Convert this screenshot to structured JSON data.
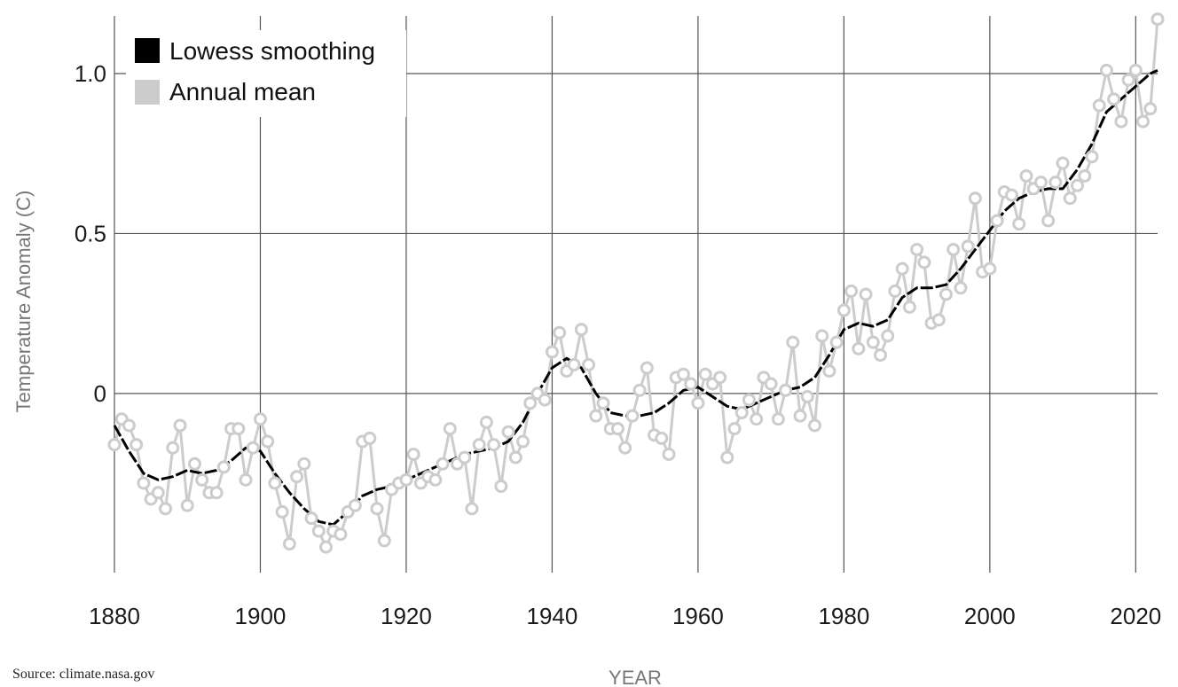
{
  "source": "Source: climate.nasa.gov",
  "chart_data": {
    "type": "line",
    "xlabel": "YEAR",
    "ylabel": "Temperature Anomaly (C)",
    "xlim": [
      1880,
      2023
    ],
    "ylim": [
      -0.56,
      1.18
    ],
    "x_ticks": [
      1880,
      1900,
      1920,
      1940,
      1960,
      1980,
      2000,
      2020
    ],
    "y_ticks": [
      {
        "value": 0,
        "label": "0"
      },
      {
        "value": 0.5,
        "label": "0.5"
      },
      {
        "value": 1.0,
        "label": "1.0"
      }
    ],
    "grid": true,
    "legend_position": "top-left",
    "series_colors": {
      "smooth": "#000000",
      "annual": "#cccccc"
    },
    "series": [
      {
        "name": "Lowess smoothing",
        "x": [
          1880,
          1882,
          1884,
          1886,
          1888,
          1890,
          1892,
          1894,
          1896,
          1898,
          1900,
          1902,
          1904,
          1906,
          1908,
          1910,
          1912,
          1914,
          1916,
          1918,
          1920,
          1922,
          1924,
          1926,
          1928,
          1930,
          1932,
          1934,
          1936,
          1938,
          1940,
          1942,
          1944,
          1946,
          1948,
          1950,
          1952,
          1954,
          1956,
          1958,
          1960,
          1962,
          1964,
          1966,
          1968,
          1970,
          1972,
          1974,
          1976,
          1978,
          1980,
          1982,
          1984,
          1986,
          1988,
          1990,
          1992,
          1994,
          1996,
          1998,
          2000,
          2002,
          2004,
          2006,
          2008,
          2010,
          2012,
          2014,
          2016,
          2018,
          2020,
          2022,
          2023
        ],
        "values": [
          -0.1,
          -0.18,
          -0.25,
          -0.27,
          -0.26,
          -0.24,
          -0.25,
          -0.24,
          -0.21,
          -0.17,
          -0.18,
          -0.25,
          -0.31,
          -0.36,
          -0.4,
          -0.41,
          -0.37,
          -0.32,
          -0.3,
          -0.29,
          -0.27,
          -0.25,
          -0.23,
          -0.21,
          -0.19,
          -0.18,
          -0.17,
          -0.15,
          -0.09,
          0.0,
          0.08,
          0.11,
          0.08,
          0.0,
          -0.06,
          -0.07,
          -0.07,
          -0.06,
          -0.03,
          0.01,
          0.02,
          -0.01,
          -0.04,
          -0.05,
          -0.03,
          -0.01,
          0.01,
          0.02,
          0.05,
          0.12,
          0.2,
          0.22,
          0.21,
          0.23,
          0.3,
          0.33,
          0.33,
          0.34,
          0.39,
          0.45,
          0.51,
          0.57,
          0.61,
          0.63,
          0.64,
          0.64,
          0.7,
          0.78,
          0.88,
          0.92,
          0.96,
          1.0,
          1.01
        ]
      },
      {
        "name": "Annual mean",
        "x": [
          1880,
          1881,
          1882,
          1883,
          1884,
          1885,
          1886,
          1887,
          1888,
          1889,
          1890,
          1891,
          1892,
          1893,
          1894,
          1895,
          1896,
          1897,
          1898,
          1899,
          1900,
          1901,
          1902,
          1903,
          1904,
          1905,
          1906,
          1907,
          1908,
          1909,
          1910,
          1911,
          1912,
          1913,
          1914,
          1915,
          1916,
          1917,
          1918,
          1919,
          1920,
          1921,
          1922,
          1923,
          1924,
          1925,
          1926,
          1927,
          1928,
          1929,
          1930,
          1931,
          1932,
          1933,
          1934,
          1935,
          1936,
          1937,
          1938,
          1939,
          1940,
          1941,
          1942,
          1943,
          1944,
          1945,
          1946,
          1947,
          1948,
          1949,
          1950,
          1951,
          1952,
          1953,
          1954,
          1955,
          1956,
          1957,
          1958,
          1959,
          1960,
          1961,
          1962,
          1963,
          1964,
          1965,
          1966,
          1967,
          1968,
          1969,
          1970,
          1971,
          1972,
          1973,
          1974,
          1975,
          1976,
          1977,
          1978,
          1979,
          1980,
          1981,
          1982,
          1983,
          1984,
          1985,
          1986,
          1987,
          1988,
          1989,
          1990,
          1991,
          1992,
          1993,
          1994,
          1995,
          1996,
          1997,
          1998,
          1999,
          2000,
          2001,
          2002,
          2003,
          2004,
          2005,
          2006,
          2007,
          2008,
          2009,
          2010,
          2011,
          2012,
          2013,
          2014,
          2015,
          2016,
          2017,
          2018,
          2019,
          2020,
          2021,
          2022,
          2023
        ],
        "values": [
          -0.16,
          -0.08,
          -0.1,
          -0.16,
          -0.28,
          -0.33,
          -0.31,
          -0.36,
          -0.17,
          -0.1,
          -0.35,
          -0.22,
          -0.27,
          -0.31,
          -0.31,
          -0.23,
          -0.11,
          -0.11,
          -0.27,
          -0.17,
          -0.08,
          -0.15,
          -0.28,
          -0.37,
          -0.47,
          -0.26,
          -0.22,
          -0.39,
          -0.43,
          -0.48,
          -0.43,
          -0.44,
          -0.37,
          -0.35,
          -0.15,
          -0.14,
          -0.36,
          -0.46,
          -0.3,
          -0.28,
          -0.27,
          -0.19,
          -0.28,
          -0.26,
          -0.27,
          -0.22,
          -0.11,
          -0.22,
          -0.2,
          -0.36,
          -0.16,
          -0.09,
          -0.16,
          -0.29,
          -0.12,
          -0.2,
          -0.15,
          -0.03,
          0.0,
          -0.02,
          0.13,
          0.19,
          0.07,
          0.09,
          0.2,
          0.09,
          -0.07,
          -0.03,
          -0.11,
          -0.11,
          -0.17,
          -0.07,
          0.01,
          0.08,
          -0.13,
          -0.14,
          -0.19,
          0.05,
          0.06,
          0.03,
          -0.03,
          0.06,
          0.03,
          0.05,
          -0.2,
          -0.11,
          -0.06,
          -0.02,
          -0.08,
          0.05,
          0.03,
          -0.08,
          0.01,
          0.16,
          -0.07,
          -0.01,
          -0.1,
          0.18,
          0.07,
          0.16,
          0.26,
          0.32,
          0.14,
          0.31,
          0.16,
          0.12,
          0.18,
          0.32,
          0.39,
          0.27,
          0.45,
          0.41,
          0.22,
          0.23,
          0.31,
          0.45,
          0.33,
          0.46,
          0.61,
          0.38,
          0.39,
          0.54,
          0.63,
          0.62,
          0.53,
          0.68,
          0.64,
          0.66,
          0.54,
          0.66,
          0.72,
          0.61,
          0.65,
          0.68,
          0.74,
          0.9,
          1.01,
          0.92,
          0.85,
          0.98,
          1.01,
          0.85,
          0.89,
          1.17
        ]
      }
    ]
  }
}
